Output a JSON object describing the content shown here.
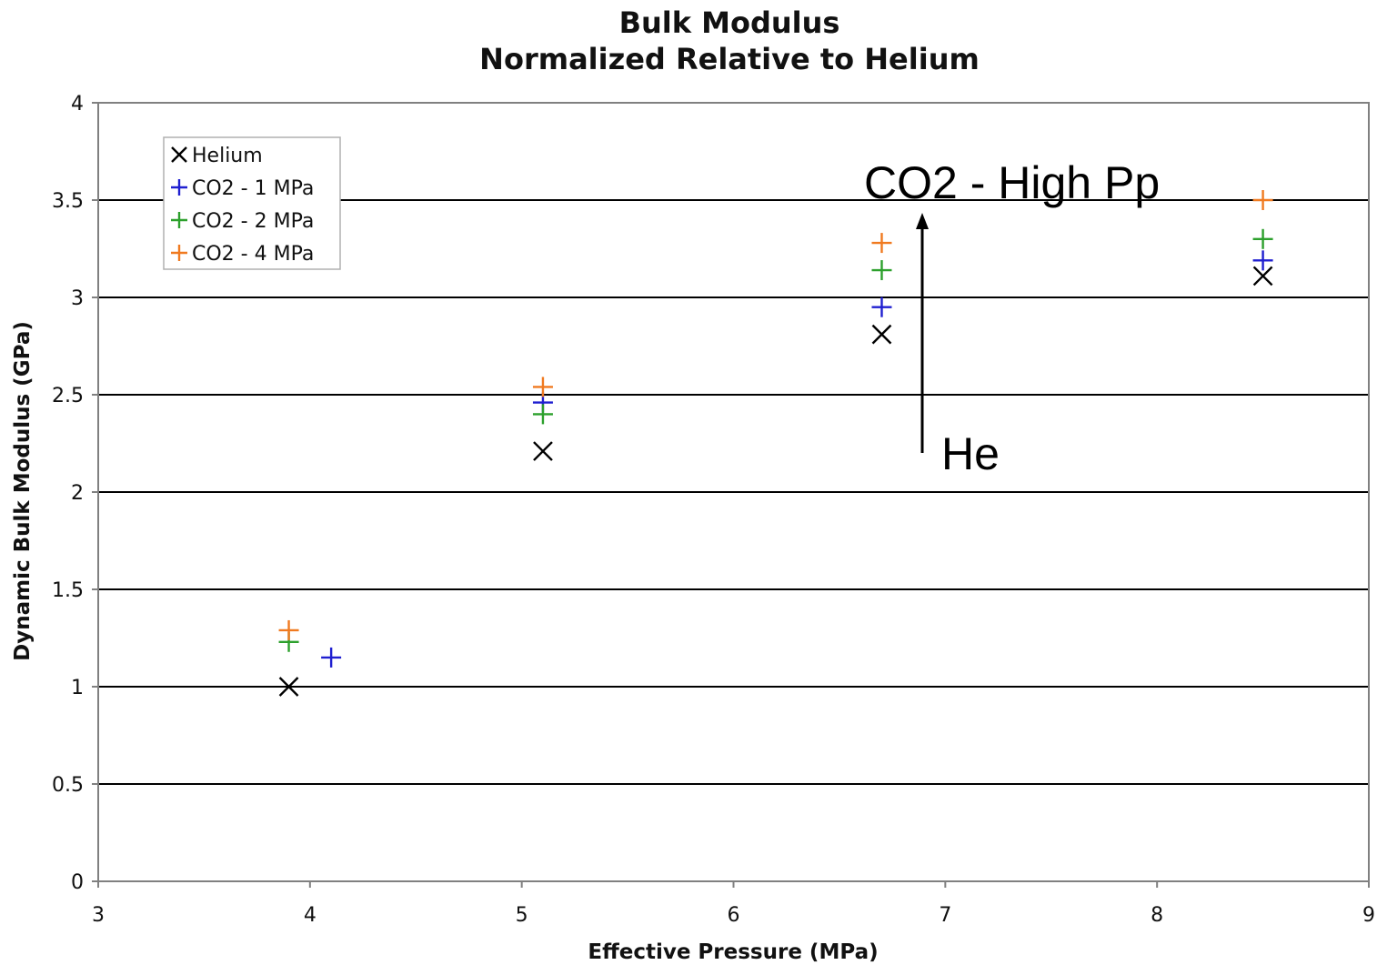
{
  "chart_data": {
    "type": "scatter",
    "title": "Bulk Modulus",
    "subtitle": "Normalized Relative to Helium",
    "xlabel": "Effective Pressure (MPa)",
    "ylabel": "Dynamic Bulk Modulus (GPa)",
    "xlim": [
      3,
      9
    ],
    "ylim": [
      0,
      4
    ],
    "x_ticks": [
      "3",
      "4",
      "5",
      "6",
      "7",
      "8",
      "9"
    ],
    "y_ticks": [
      "0",
      "0.5",
      "1",
      "1.5",
      "2",
      "2.5",
      "3",
      "3.5",
      "4"
    ],
    "grid": "horizontal",
    "legend_position": "top-left",
    "series": [
      {
        "name": "Helium",
        "marker": "x",
        "color": "#000000",
        "x": [
          3.9,
          5.1,
          6.7,
          8.5
        ],
        "y": [
          1.0,
          2.21,
          2.81,
          3.11
        ]
      },
      {
        "name": "CO2 - 1 MPa",
        "marker": "+",
        "color": "#1f1fd0",
        "x": [
          4.1,
          5.1,
          6.7,
          8.5
        ],
        "y": [
          1.15,
          2.46,
          2.95,
          3.19
        ]
      },
      {
        "name": "CO2 - 2 MPa",
        "marker": "+",
        "color": "#2ca02c",
        "x": [
          3.9,
          5.1,
          6.7,
          8.5
        ],
        "y": [
          1.23,
          2.4,
          3.14,
          3.3
        ]
      },
      {
        "name": "CO2 - 4 MPa",
        "marker": "+",
        "color": "#f07a20",
        "x": [
          3.9,
          5.1,
          6.7,
          8.5
        ],
        "y": [
          1.29,
          2.54,
          3.28,
          3.5
        ]
      }
    ],
    "annotations": [
      {
        "text": "CO2 - High Pp"
      },
      {
        "text": "He"
      }
    ]
  }
}
